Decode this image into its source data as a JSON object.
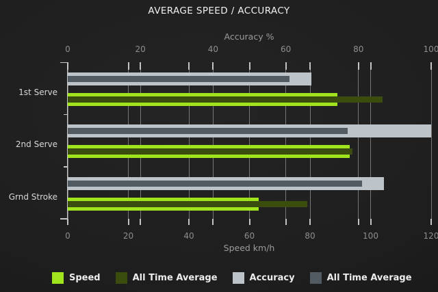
{
  "title": "AVERAGE SPEED / ACCURACY",
  "colors": {
    "speed": "#A0E41E",
    "speed_all_time_avg": "#3A4D0E",
    "accuracy": "#BCC3C9",
    "accuracy_all_time_avg": "#525A62",
    "background": "#1E1E1E",
    "grid": "#BEBEBE",
    "axis": "#C8C8C8"
  },
  "chart_data": {
    "type": "bar",
    "orientation": "horizontal",
    "categories": [
      "1st Serve",
      "2nd Serve",
      "Grnd Stroke"
    ],
    "top_axis": {
      "label": "Accuracy %",
      "ticks": [
        0,
        20,
        40,
        60,
        80,
        100
      ],
      "range": [
        0,
        100
      ]
    },
    "bottom_axis": {
      "label": "Speed km/h",
      "ticks": [
        0,
        20,
        40,
        60,
        80,
        100,
        120
      ],
      "range": [
        0,
        120
      ]
    },
    "series": [
      {
        "name": "Speed",
        "axis": "bottom",
        "role": "outer",
        "color": "#A0E41E",
        "values": [
          89,
          93,
          63
        ]
      },
      {
        "name": "All Time Average",
        "axis": "bottom",
        "role": "inner",
        "color": "#3A4D0E",
        "values": [
          104,
          94,
          79
        ]
      },
      {
        "name": "Accuracy",
        "axis": "top",
        "role": "outer",
        "color": "#BCC3C9",
        "values": [
          67,
          100,
          87
        ]
      },
      {
        "name": "All Time Average",
        "axis": "top",
        "role": "inner",
        "color": "#525A62",
        "values": [
          61,
          77,
          81
        ]
      }
    ],
    "legend": [
      {
        "label": "Speed",
        "color": "#A0E41E"
      },
      {
        "label": "All Time Average",
        "color": "#3A4D0E"
      },
      {
        "label": "Accuracy",
        "color": "#BCC3C9"
      },
      {
        "label": "All Time Average",
        "color": "#525A62"
      }
    ],
    "legend_position": "bottom",
    "grid": true
  }
}
